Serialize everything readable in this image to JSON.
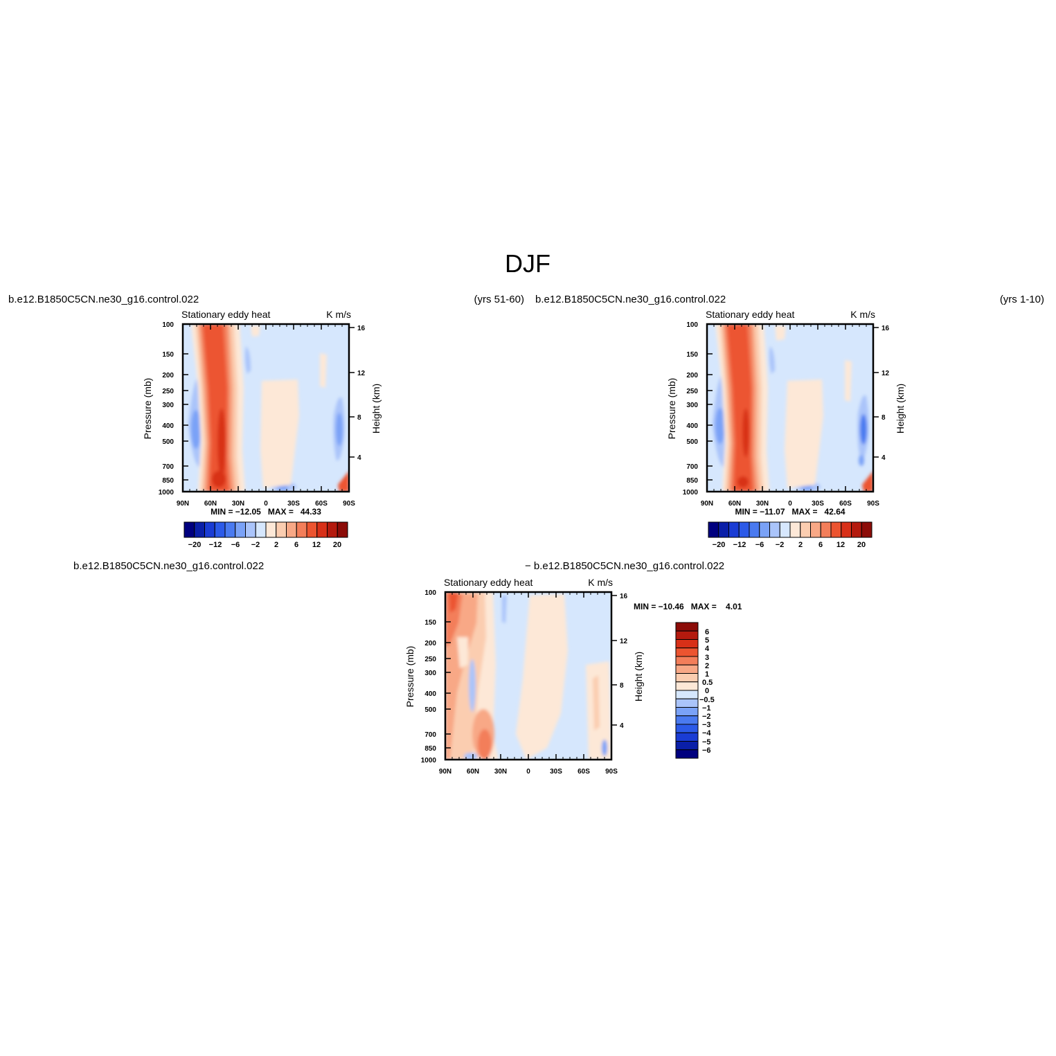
{
  "figure": {
    "title": "DJF"
  },
  "colormap_main": [
    "#00007f",
    "#0a1fa8",
    "#1a3cd4",
    "#2c5ae8",
    "#4a7af0",
    "#7aa2f7",
    "#aac4fa",
    "#d6e7fd",
    "#fde8d7",
    "#fbcdb0",
    "#f8a886",
    "#f37e5a",
    "#ec5430",
    "#d83018",
    "#b41a0e",
    "#8c0c08"
  ],
  "colormap_diff": [
    "#00007f",
    "#0a1fa8",
    "#1a3cd4",
    "#2c5ae8",
    "#4a7af0",
    "#7aa2f7",
    "#aac4fa",
    "#d6e7fd",
    "#fde8d7",
    "#fbcdb0",
    "#f8a886",
    "#f37e5a",
    "#ec5430",
    "#d83018",
    "#b41a0e",
    "#8c0c08"
  ],
  "chart_data": [
    {
      "type": "heatmap",
      "case_title": "b.e12.B1850C5CN.ne30_g16.control.022",
      "years_label": "(yrs 51-60)",
      "variable": "Stationary eddy heat",
      "units": "K m/s",
      "ylabel": "Pressure (mb)",
      "ylabel_right": "Height (km)",
      "x_ticks": [
        "90N",
        "60N",
        "30N",
        "0",
        "30S",
        "60S",
        "90S"
      ],
      "y_ticks": [
        "100",
        "150",
        "200",
        "250",
        "300",
        "400",
        "500",
        "700",
        "850",
        "1000"
      ],
      "right_ticks": [
        "16",
        "12",
        "8",
        "4"
      ],
      "stats": "MIN = −12.05   MAX =   44.33",
      "colorbar_labels": [
        "−20",
        "−12",
        "−6",
        "−2",
        "2",
        "6",
        "12",
        "20"
      ],
      "ylim": [
        1000,
        100
      ],
      "xlim": [
        90,
        -90
      ],
      "log_y": true
    },
    {
      "type": "heatmap",
      "case_title": "b.e12.B1850C5CN.ne30_g16.control.022",
      "years_label": "(yrs 1-10)",
      "variable": "Stationary eddy heat",
      "units": "K m/s",
      "ylabel": "Pressure (mb)",
      "ylabel_right": "Height (km)",
      "x_ticks": [
        "90N",
        "60N",
        "30N",
        "0",
        "30S",
        "60S",
        "90S"
      ],
      "y_ticks": [
        "100",
        "150",
        "200",
        "250",
        "300",
        "400",
        "500",
        "700",
        "850",
        "1000"
      ],
      "right_ticks": [
        "16",
        "12",
        "8",
        "4"
      ],
      "stats": "MIN = −11.07   MAX =   42.64",
      "colorbar_labels": [
        "−20",
        "−12",
        "−6",
        "−2",
        "2",
        "6",
        "12",
        "20"
      ],
      "ylim": [
        1000,
        100
      ],
      "xlim": [
        90,
        -90
      ],
      "log_y": true
    },
    {
      "type": "heatmap",
      "case_title": "b.e12.B1850C5CN.ne30_g16.control.022",
      "case_title_diff": "− b.e12.B1850C5CN.ne30_g16.control.022",
      "variable": "Stationary eddy heat",
      "units": "K m/s",
      "ylabel": "Pressure (mb)",
      "ylabel_right": "Height (km)",
      "x_ticks": [
        "90N",
        "60N",
        "30N",
        "0",
        "30S",
        "60S",
        "90S"
      ],
      "y_ticks": [
        "100",
        "150",
        "200",
        "250",
        "300",
        "400",
        "500",
        "700",
        "850",
        "1000"
      ],
      "right_ticks": [
        "16",
        "12",
        "8",
        "4"
      ],
      "stats": "MIN = −10.46   MAX =    4.01",
      "colorbar_labels": [
        "6",
        "5",
        "4",
        "3",
        "2",
        "1",
        "0.5",
        "0",
        "−0.5",
        "−1",
        "−2",
        "−3",
        "−4",
        "−5",
        "−6"
      ],
      "ylim": [
        1000,
        100
      ],
      "xlim": [
        90,
        -90
      ],
      "log_y": true
    }
  ]
}
